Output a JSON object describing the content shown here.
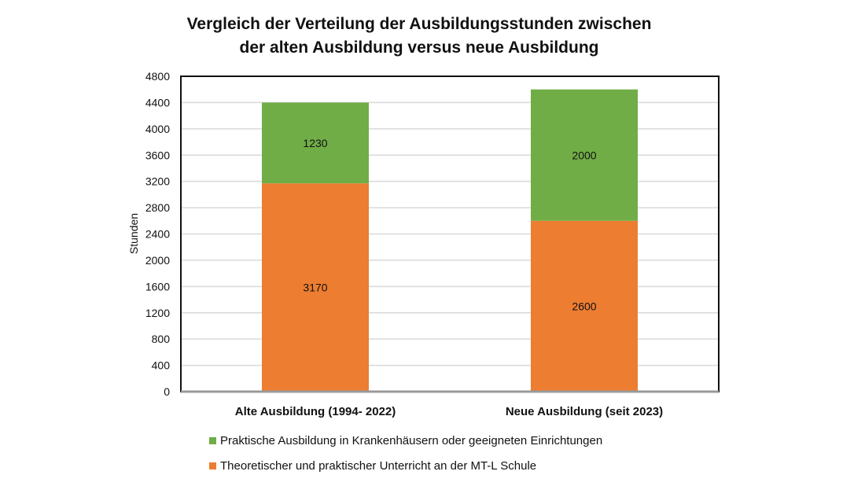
{
  "chart_data": {
    "type": "bar",
    "stacked": true,
    "title_lines": [
      "Vergleich der Verteilung der Ausbildungsstunden zwischen",
      "der alten Ausbildung versus neue Ausbildung"
    ],
    "xlabel": "",
    "ylabel": "Stunden",
    "ylim": [
      0,
      4800
    ],
    "yticks": [
      0,
      400,
      800,
      1200,
      1600,
      2000,
      2400,
      2800,
      3200,
      3600,
      4000,
      4400,
      4800
    ],
    "grid": true,
    "legend_position": "bottom",
    "categories": [
      "Alte Ausbildung (1994- 2022)",
      "Neue Ausbildung (seit 2023)"
    ],
    "series": [
      {
        "name": "Theoretischer und praktischer Unterricht an der MT-L Schule",
        "values": [
          3170,
          2600
        ],
        "color": "#ED7D31"
      },
      {
        "name": "Praktische Ausbildung in Krankenhäusern oder geeigneten Einrichtungen",
        "values": [
          1230,
          2000
        ],
        "color": "#70AD47"
      }
    ]
  }
}
